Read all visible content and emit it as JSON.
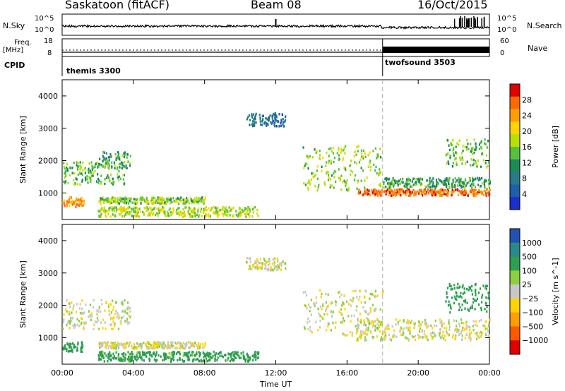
{
  "header": {
    "station": "Saskatoon (fitACF)",
    "beam": "Beam 08",
    "date": "16/Oct/2015"
  },
  "top_panels": {
    "nsky_label": "N.Sky",
    "nsearch_label": "N.Search",
    "nsky_ticks": [
      "10^5",
      "10^0"
    ],
    "nsearch_ticks": [
      "10^5",
      "10^0"
    ],
    "freq_label_top": "Freq.",
    "freq_label_unit": "[MHz]",
    "freq_ticks": [
      "18",
      "8"
    ],
    "nave_label": "Nave",
    "nave_ticks": [
      "60",
      "0"
    ],
    "cpid_label": "CPID",
    "programs": [
      {
        "name": "themis 3300",
        "start_hour": 0
      },
      {
        "name": "twofsound 3503",
        "start_hour": 18
      }
    ]
  },
  "chart_data": [
    {
      "type": "heatmap",
      "title": "",
      "ylabel": "Slant Range [km]",
      "xlabel": "",
      "ylim": [
        180,
        4500
      ],
      "xlim_hours": [
        0,
        24
      ],
      "yticks": [
        1000,
        2000,
        3000,
        4000
      ],
      "colorbar": {
        "label": "Power [dB]",
        "ticks": [
          "28",
          "24",
          "20",
          "16",
          "12",
          "8",
          "4"
        ],
        "colors": [
          "#e00000",
          "#ff6a00",
          "#ff9e00",
          "#ffd400",
          "#b7e000",
          "#58c040",
          "#1d8a5a",
          "#2a7a8a",
          "#1f5fa8",
          "#1a2fd0"
        ]
      },
      "echo_bands": [
        {
          "t0": 0.0,
          "t1": 1.2,
          "r0": 600,
          "r1": 900,
          "v": 26
        },
        {
          "t0": 0.0,
          "t1": 3.5,
          "r0": 1300,
          "r1": 2000,
          "v": 14
        },
        {
          "t0": 2.0,
          "t1": 3.8,
          "r0": 1800,
          "r1": 2300,
          "v": 12
        },
        {
          "t0": 2.0,
          "t1": 8.0,
          "r0": 700,
          "r1": 900,
          "v": 16
        },
        {
          "t0": 2.0,
          "t1": 11.0,
          "r0": 300,
          "r1": 600,
          "v": 18
        },
        {
          "t0": 10.3,
          "t1": 12.5,
          "r0": 3100,
          "r1": 3500,
          "v": 6
        },
        {
          "t0": 13.5,
          "t1": 18.0,
          "r0": 1100,
          "r1": 2500,
          "v": 16
        },
        {
          "t0": 16.5,
          "t1": 24.0,
          "r0": 950,
          "r1": 1150,
          "v": 28
        },
        {
          "t0": 18.0,
          "t1": 24.0,
          "r0": 1200,
          "r1": 1500,
          "v": 12
        },
        {
          "t0": 21.5,
          "t1": 24.0,
          "r0": 1800,
          "r1": 2700,
          "v": 14
        }
      ]
    },
    {
      "type": "heatmap",
      "title": "",
      "ylabel": "Slant Range [km]",
      "xlabel": "Time UT",
      "ylim": [
        180,
        4500
      ],
      "xlim_hours": [
        0,
        24
      ],
      "yticks": [
        1000,
        2000,
        3000,
        4000
      ],
      "xticks": [
        "00:00",
        "04:00",
        "08:00",
        "12:00",
        "16:00",
        "20:00",
        "00:00"
      ],
      "colorbar": {
        "label": "Velocity [m s^-1]",
        "ticks": [
          "1000",
          "500",
          "100",
          "25",
          "−25",
          "−100",
          "−500",
          "−1000"
        ],
        "colors": [
          "#2450b0",
          "#2a8a8a",
          "#2e9e50",
          "#8ad040",
          "#c8c8c8",
          "#ffd400",
          "#ff9e00",
          "#ff5a00",
          "#e00000"
        ]
      },
      "echo_bands": [
        {
          "t0": 0.0,
          "t1": 1.2,
          "r0": 600,
          "r1": 900,
          "v": 200
        },
        {
          "t0": 0.0,
          "t1": 3.8,
          "r0": 1300,
          "r1": 2200,
          "v": 0
        },
        {
          "t0": 2.0,
          "t1": 8.0,
          "r0": 700,
          "r1": 900,
          "v": 0
        },
        {
          "t0": 2.0,
          "t1": 11.0,
          "r0": 300,
          "r1": 600,
          "v": 150
        },
        {
          "t0": 10.3,
          "t1": 12.5,
          "r0": 3100,
          "r1": 3500,
          "v": 0
        },
        {
          "t0": 13.5,
          "t1": 18.0,
          "r0": 1100,
          "r1": 2500,
          "v": 0
        },
        {
          "t0": 16.5,
          "t1": 24.0,
          "r0": 950,
          "r1": 1600,
          "v": 0
        },
        {
          "t0": 21.5,
          "t1": 24.0,
          "r0": 1800,
          "r1": 2700,
          "v": 200
        }
      ]
    }
  ]
}
